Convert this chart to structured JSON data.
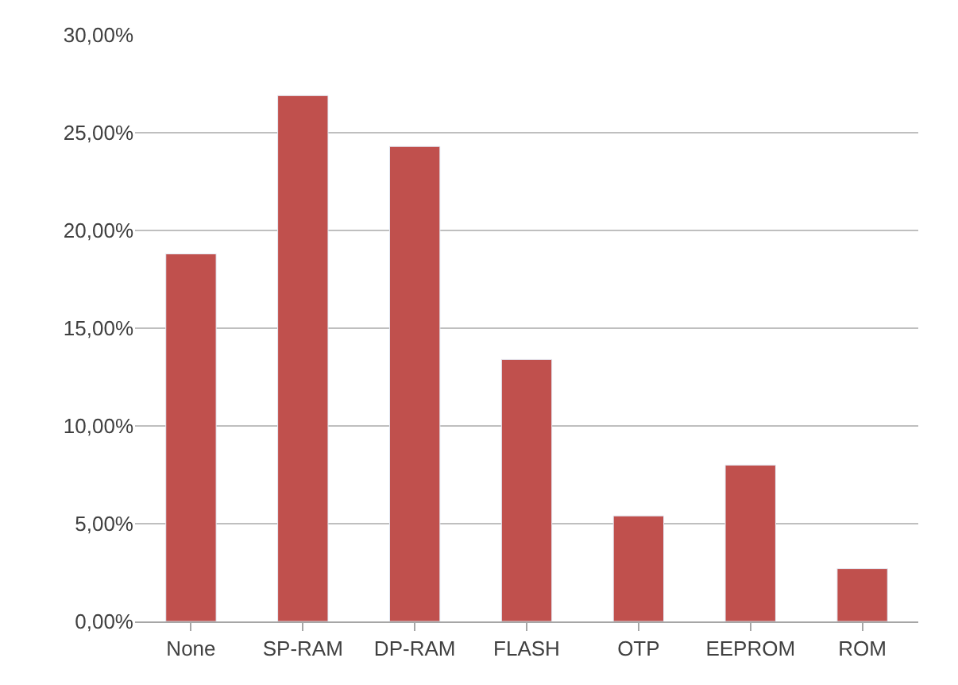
{
  "chart_data": {
    "type": "bar",
    "categories": [
      "None",
      "SP-RAM",
      "DP-RAM",
      "FLASH",
      "OTP",
      "EEPROM",
      "ROM"
    ],
    "values": [
      18.8,
      26.9,
      24.3,
      13.4,
      5.4,
      8.0,
      2.7
    ],
    "color": "#c0504d",
    "ylim": [
      0,
      30
    ],
    "yticks": [
      {
        "value": 0,
        "label": "0,00%"
      },
      {
        "value": 5,
        "label": "5,00%"
      },
      {
        "value": 10,
        "label": "10,00%"
      },
      {
        "value": 15,
        "label": "15,00%"
      },
      {
        "value": 20,
        "label": "20,00%"
      },
      {
        "value": 25,
        "label": "25,00%"
      },
      {
        "value": 30,
        "label": "30,00%"
      }
    ],
    "grid": "y",
    "legend": false
  }
}
